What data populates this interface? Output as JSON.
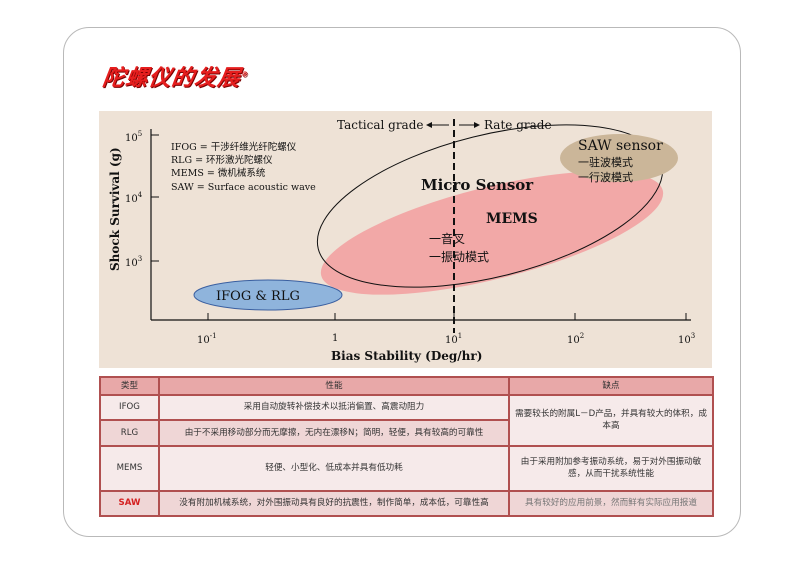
{
  "page": {
    "title": "陀螺仪的发展",
    "title_mark": "®"
  },
  "chart": {
    "xlabel": "Bias Stability (Deg/hr)",
    "ylabel": "Shock Survival (g)",
    "x_ticks": [
      {
        "base": "10",
        "exp": "-1",
        "value": 0.1
      },
      {
        "base": "1",
        "exp": "",
        "value": 1
      },
      {
        "base": "10",
        "exp": "1",
        "value": 10
      },
      {
        "base": "10",
        "exp": "2",
        "value": 100
      },
      {
        "base": "10",
        "exp": "3",
        "value": 1000
      }
    ],
    "y_ticks": [
      {
        "base": "10",
        "exp": "3",
        "value": 1000
      },
      {
        "base": "10",
        "exp": "4",
        "value": 10000
      },
      {
        "base": "10",
        "exp": "5",
        "value": 100000
      }
    ],
    "x_scale": "log",
    "y_scale": "log",
    "tactical_label": "Tactical grade",
    "rate_label": "Rate grade",
    "legend": [
      "IFOG = 干涉纤维光纤陀螺仪",
      "RLG = 环形激光陀螺仪",
      "MEMS = 微机械系统",
      "SAW = Surface acoustic wave"
    ],
    "regions": {
      "ifog_rlg": "IFOG & RLG",
      "micro_sensor": "Micro Sensor",
      "mems": "MEMS",
      "mems_items": [
        "一音叉",
        "一振动模式"
      ],
      "saw": "SAW sensor",
      "saw_items": [
        "一驻波模式",
        "一行波模式"
      ]
    },
    "colors": {
      "ifog_fill": "#8fb4dc",
      "mems_fill": "#f0a0a0",
      "saw_fill": "#c9b49a",
      "panel": "#eee2d6"
    }
  },
  "table": {
    "headers": [
      "类型",
      "性能",
      "缺点"
    ],
    "rows": [
      {
        "type": "IFOG",
        "performance": "采用自动旋转补偿技术以抵消偏置、高震动阻力"
      },
      {
        "type": "RLG",
        "performance": "由于不采用移动部分而无摩擦，无内在漂移N；简明，轻便，具有较高的可靠性"
      },
      {
        "type": "MEMS",
        "performance": "轻便、小型化、低成本并具有低功耗",
        "drawback": "由于采用附加参考振动系统，易于对外围振动敏感，从而干扰系统性能"
      },
      {
        "type": "SAW",
        "performance": "没有附加机械系统，对外围振动具有良好的抗震性，制作简单，成本低，可靠性高",
        "drawback": "具有较好的应用前景，然而鲜有实际应用报道"
      }
    ],
    "shared_drawback": "需要较长的附属L－D产品，并具有较大的体积，成本高"
  }
}
